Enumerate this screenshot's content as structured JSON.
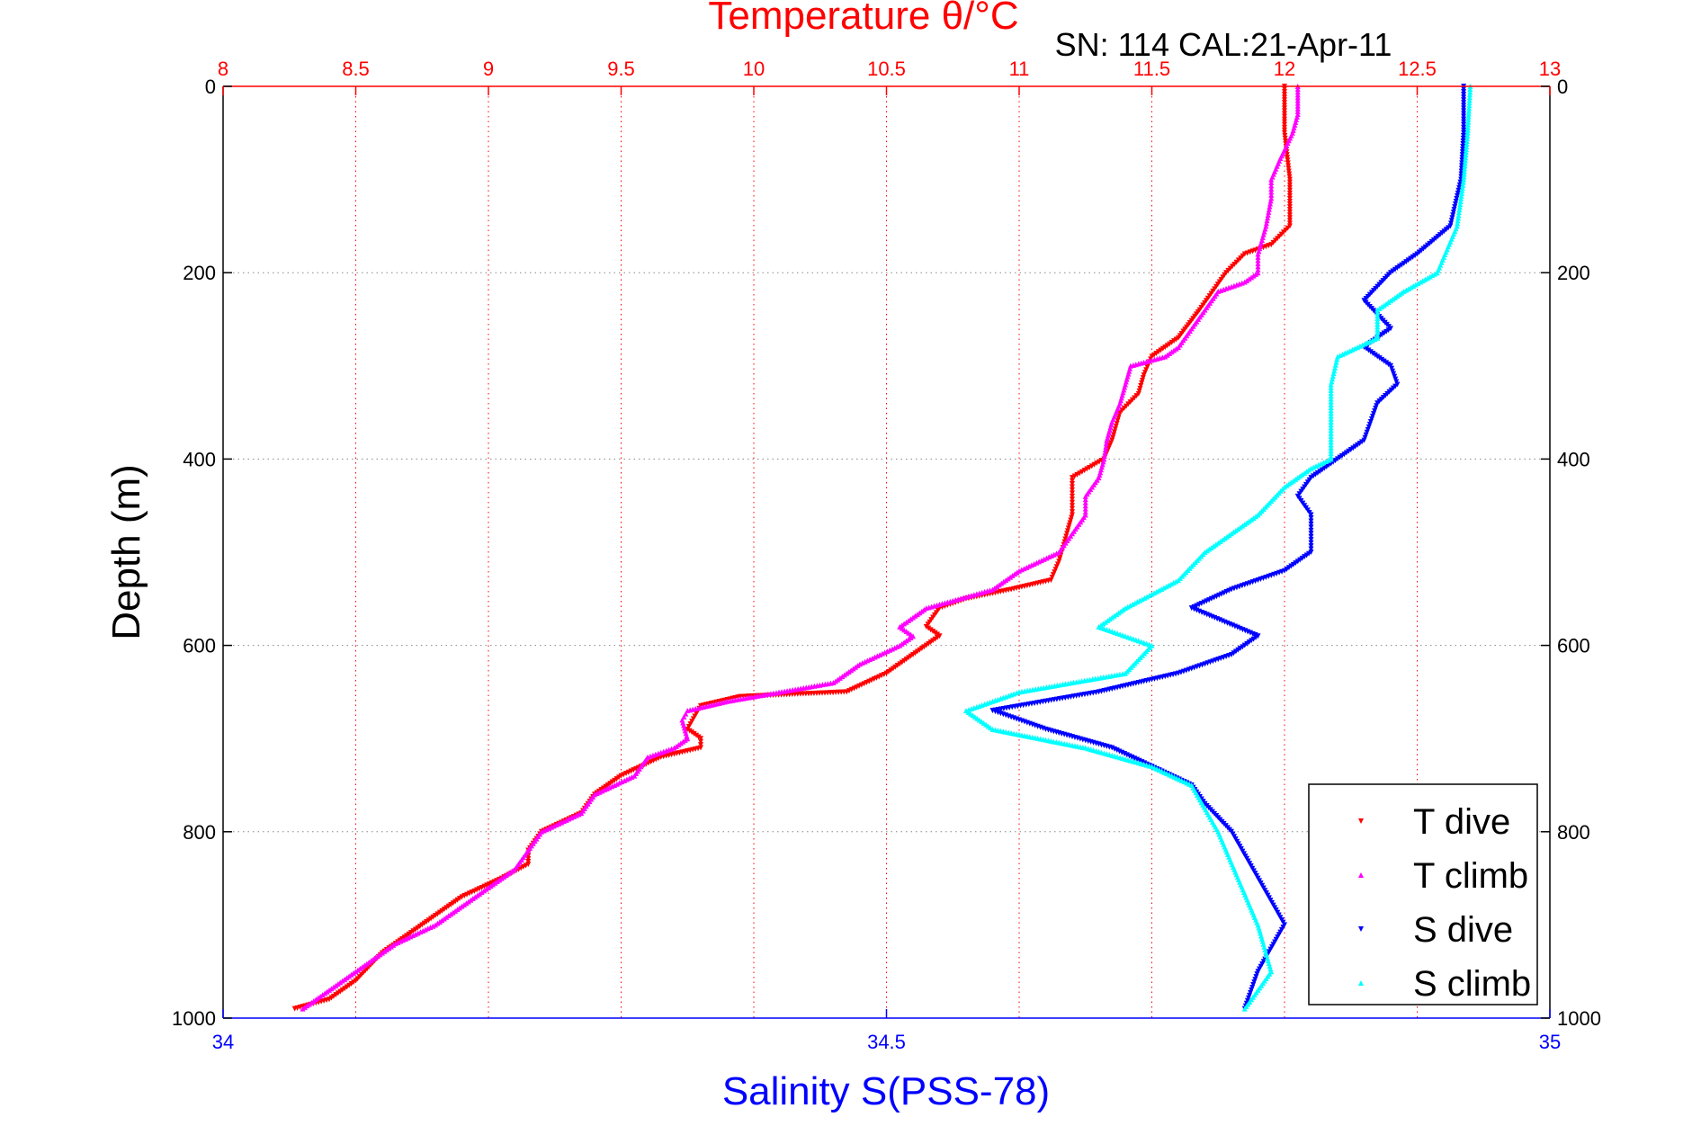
{
  "chart_data": {
    "type": "scatter",
    "title": "Temperature θ/°C",
    "subtitle": "SN: 114  CAL:21-Apr-11",
    "ylabel": "Depth (m)",
    "x2label": "Salinity S(PSS-78)",
    "y_axis": {
      "min": 0,
      "max": 1000,
      "reversed": true,
      "ticks": [
        0,
        200,
        400,
        600,
        800,
        1000
      ]
    },
    "temperature_axis": {
      "position": "top",
      "min": 8,
      "max": 13,
      "ticks": [
        8,
        8.5,
        9,
        9.5,
        10,
        10.5,
        11,
        11.5,
        12,
        12.5,
        13
      ]
    },
    "salinity_axis": {
      "position": "bottom",
      "min": 34,
      "max": 35,
      "ticks": [
        34,
        34.5,
        35
      ]
    },
    "grid": true,
    "legend": {
      "position": "bottom-right",
      "entries": [
        "T dive",
        "T climb",
        "S dive",
        "S climb"
      ]
    },
    "colors": {
      "title": "#ff0000",
      "temperature_axis": "#ff0000",
      "salinity_axis": "#0000ff",
      "grid": "#888888"
    },
    "series": [
      {
        "name": "T dive",
        "axis": "temperature",
        "color": "#ff0000",
        "marker": "triangle-down",
        "points": [
          [
            12.0,
            0
          ],
          [
            12.0,
            50
          ],
          [
            12.02,
            100
          ],
          [
            12.02,
            150
          ],
          [
            11.95,
            170
          ],
          [
            11.85,
            180
          ],
          [
            11.78,
            200
          ],
          [
            11.68,
            240
          ],
          [
            11.6,
            270
          ],
          [
            11.5,
            290
          ],
          [
            11.47,
            310
          ],
          [
            11.45,
            330
          ],
          [
            11.38,
            350
          ],
          [
            11.35,
            380
          ],
          [
            11.32,
            400
          ],
          [
            11.2,
            420
          ],
          [
            11.2,
            440
          ],
          [
            11.2,
            460
          ],
          [
            11.18,
            480
          ],
          [
            11.15,
            510
          ],
          [
            11.12,
            530
          ],
          [
            10.97,
            540
          ],
          [
            10.8,
            550
          ],
          [
            10.7,
            560
          ],
          [
            10.65,
            580
          ],
          [
            10.7,
            590
          ],
          [
            10.6,
            610
          ],
          [
            10.5,
            630
          ],
          [
            10.35,
            650
          ],
          [
            9.95,
            655
          ],
          [
            9.8,
            665
          ],
          [
            9.75,
            690
          ],
          [
            9.8,
            700
          ],
          [
            9.8,
            710
          ],
          [
            9.65,
            720
          ],
          [
            9.5,
            740
          ],
          [
            9.4,
            760
          ],
          [
            9.35,
            780
          ],
          [
            9.2,
            800
          ],
          [
            9.15,
            820
          ],
          [
            9.15,
            835
          ],
          [
            9.05,
            850
          ],
          [
            8.9,
            870
          ],
          [
            8.85,
            880
          ],
          [
            8.75,
            900
          ],
          [
            8.6,
            930
          ],
          [
            8.5,
            960
          ],
          [
            8.4,
            980
          ],
          [
            8.27,
            990
          ]
        ]
      },
      {
        "name": "T climb",
        "axis": "temperature",
        "color": "#ff00ff",
        "marker": "triangle-up",
        "points": [
          [
            12.05,
            0
          ],
          [
            12.05,
            30
          ],
          [
            12.03,
            50
          ],
          [
            11.98,
            80
          ],
          [
            11.95,
            100
          ],
          [
            11.95,
            120
          ],
          [
            11.93,
            150
          ],
          [
            11.9,
            180
          ],
          [
            11.9,
            200
          ],
          [
            11.85,
            210
          ],
          [
            11.75,
            220
          ],
          [
            11.7,
            240
          ],
          [
            11.6,
            280
          ],
          [
            11.55,
            290
          ],
          [
            11.42,
            300
          ],
          [
            11.4,
            320
          ],
          [
            11.38,
            340
          ],
          [
            11.35,
            360
          ],
          [
            11.33,
            380
          ],
          [
            11.32,
            400
          ],
          [
            11.3,
            420
          ],
          [
            11.25,
            440
          ],
          [
            11.25,
            460
          ],
          [
            11.2,
            480
          ],
          [
            11.15,
            500
          ],
          [
            11.0,
            520
          ],
          [
            10.9,
            540
          ],
          [
            10.65,
            560
          ],
          [
            10.55,
            580
          ],
          [
            10.6,
            590
          ],
          [
            10.55,
            600
          ],
          [
            10.4,
            620
          ],
          [
            10.3,
            640
          ],
          [
            9.9,
            660
          ],
          [
            9.75,
            670
          ],
          [
            9.73,
            680
          ],
          [
            9.75,
            700
          ],
          [
            9.7,
            710
          ],
          [
            9.6,
            720
          ],
          [
            9.55,
            740
          ],
          [
            9.4,
            760
          ],
          [
            9.35,
            780
          ],
          [
            9.2,
            800
          ],
          [
            9.15,
            820
          ],
          [
            9.1,
            840
          ],
          [
            9.0,
            860
          ],
          [
            8.9,
            880
          ],
          [
            8.8,
            900
          ],
          [
            8.65,
            920
          ],
          [
            8.5,
            950
          ],
          [
            8.35,
            980
          ],
          [
            8.3,
            990
          ]
        ]
      },
      {
        "name": "S dive",
        "axis": "salinity",
        "color": "#0000ff",
        "marker": "triangle-down",
        "points": [
          [
            34.935,
            0
          ],
          [
            34.935,
            50
          ],
          [
            34.933,
            100
          ],
          [
            34.925,
            150
          ],
          [
            34.9,
            180
          ],
          [
            34.88,
            200
          ],
          [
            34.86,
            230
          ],
          [
            34.88,
            260
          ],
          [
            34.86,
            280
          ],
          [
            34.88,
            300
          ],
          [
            34.885,
            320
          ],
          [
            34.87,
            340
          ],
          [
            34.865,
            360
          ],
          [
            34.86,
            380
          ],
          [
            34.84,
            400
          ],
          [
            34.82,
            420
          ],
          [
            34.81,
            440
          ],
          [
            34.82,
            460
          ],
          [
            34.82,
            480
          ],
          [
            34.82,
            500
          ],
          [
            34.8,
            520
          ],
          [
            34.76,
            540
          ],
          [
            34.73,
            560
          ],
          [
            34.78,
            590
          ],
          [
            34.76,
            610
          ],
          [
            34.72,
            630
          ],
          [
            34.66,
            650
          ],
          [
            34.62,
            660
          ],
          [
            34.58,
            670
          ],
          [
            34.62,
            690
          ],
          [
            34.67,
            710
          ],
          [
            34.7,
            730
          ],
          [
            34.73,
            750
          ],
          [
            34.74,
            770
          ],
          [
            34.76,
            800
          ],
          [
            34.78,
            850
          ],
          [
            34.8,
            900
          ],
          [
            34.78,
            950
          ],
          [
            34.77,
            990
          ]
        ]
      },
      {
        "name": "S climb",
        "axis": "salinity",
        "color": "#00ffff",
        "marker": "triangle-up",
        "points": [
          [
            34.94,
            0
          ],
          [
            34.938,
            50
          ],
          [
            34.935,
            100
          ],
          [
            34.93,
            150
          ],
          [
            34.915,
            200
          ],
          [
            34.89,
            220
          ],
          [
            34.87,
            240
          ],
          [
            34.87,
            270
          ],
          [
            34.84,
            290
          ],
          [
            34.835,
            320
          ],
          [
            34.835,
            360
          ],
          [
            34.835,
            400
          ],
          [
            34.82,
            410
          ],
          [
            34.8,
            430
          ],
          [
            34.78,
            460
          ],
          [
            34.74,
            500
          ],
          [
            34.72,
            530
          ],
          [
            34.68,
            560
          ],
          [
            34.66,
            580
          ],
          [
            34.7,
            600
          ],
          [
            34.68,
            630
          ],
          [
            34.6,
            650
          ],
          [
            34.56,
            670
          ],
          [
            34.58,
            690
          ],
          [
            34.65,
            710
          ],
          [
            34.7,
            730
          ],
          [
            34.73,
            750
          ],
          [
            34.75,
            800
          ],
          [
            34.78,
            900
          ],
          [
            34.79,
            950
          ],
          [
            34.77,
            990
          ]
        ]
      }
    ]
  }
}
